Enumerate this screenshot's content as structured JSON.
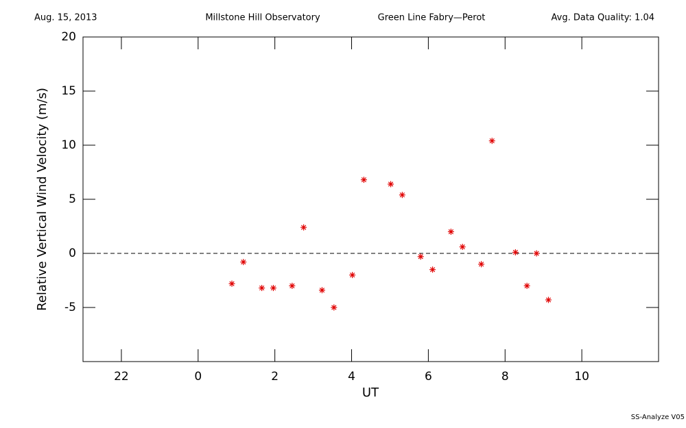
{
  "chart_data": {
    "type": "scatter",
    "date": "Aug. 15, 2013",
    "site": "Millstone Hill Observatory",
    "instrument": "Green Line Fabry—Perot",
    "quality": "Avg. Data Quality: 1.04",
    "footer": "SS-Analyze V05",
    "xlabel": "UT",
    "ylabel": "Relative Vertical Wind Velocity (m/s)",
    "color": "#e00000",
    "reference_line": 0,
    "x": [
      0.88,
      1.18,
      1.66,
      1.96,
      2.45,
      2.75,
      3.23,
      3.54,
      4.02,
      4.32,
      5.02,
      5.32,
      5.8,
      6.11,
      6.59,
      6.89,
      7.38,
      7.66,
      8.27,
      8.57,
      8.82,
      9.13
    ],
    "values": [
      -2.8,
      -0.8,
      -3.2,
      -3.2,
      -3.0,
      2.4,
      -3.4,
      -5.0,
      -2.0,
      6.8,
      6.4,
      5.4,
      -0.3,
      -1.5,
      2.0,
      0.6,
      -1.0,
      10.4,
      0.1,
      -3.0,
      0.0,
      -4.3
    ],
    "xlim": [
      -3,
      12
    ],
    "xticks": [
      {
        "value": -2,
        "label": "22"
      },
      0,
      2,
      4,
      6,
      8,
      10
    ],
    "ylim": [
      -10,
      20
    ],
    "yticks": [
      -5,
      0,
      5,
      10,
      15,
      20
    ]
  }
}
